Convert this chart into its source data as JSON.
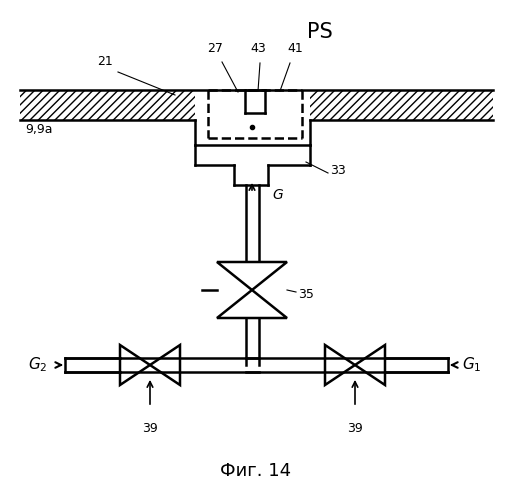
{
  "title_top": "PS",
  "title_bottom": "Фиг. 14",
  "bg_color": "#ffffff",
  "line_color": "#000000"
}
